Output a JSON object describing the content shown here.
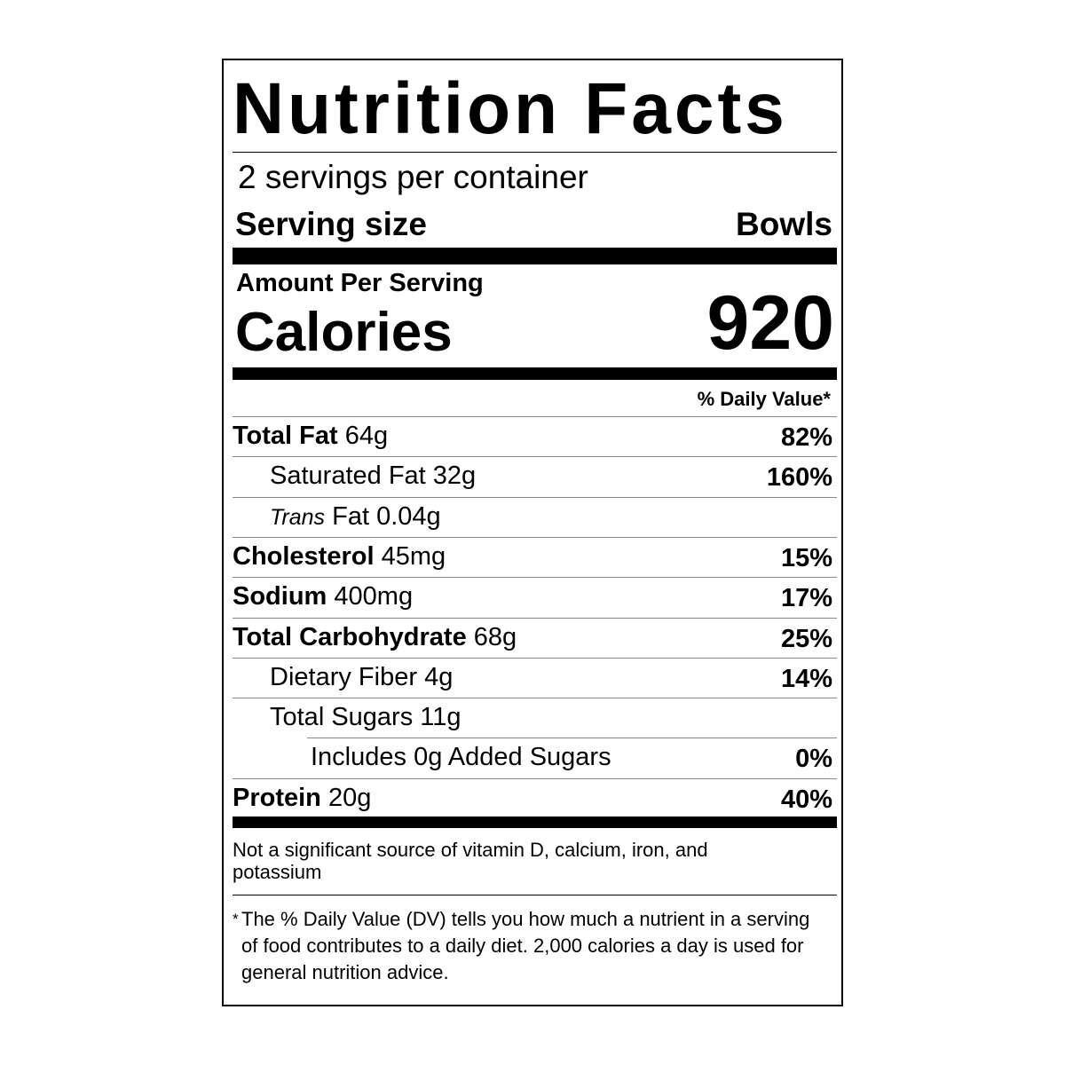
{
  "title": "Nutrition Facts",
  "servings_per_container": "2 servings per container",
  "serving_size": {
    "label": "Serving size",
    "value": "Bowls"
  },
  "amount_per_serving": "Amount Per Serving",
  "calories": {
    "label": "Calories",
    "value": 920
  },
  "daily_value_header": "% Daily Value*",
  "nutrients": [
    {
      "name": "Total Fat",
      "amount": "64g",
      "dv": "82%",
      "sub_items": [
        {
          "name": "Saturated Fat",
          "amount": "32g",
          "dv": "160%"
        },
        {
          "prefix": "Trans",
          "name": "Fat",
          "amount": "0.04g"
        }
      ]
    },
    {
      "name": "Cholesterol",
      "amount": "45mg",
      "dv": "15%"
    },
    {
      "name": "Sodium",
      "amount": "400mg",
      "dv": "17%"
    },
    {
      "name": "Total Carbohydrate",
      "amount": "68g",
      "dv": "25%",
      "sub_items": [
        {
          "name": "Dietary Fiber",
          "amount": "4g",
          "dv": "14%"
        },
        {
          "name": "Total Sugars",
          "amount": "11g",
          "sub_items": [
            {
              "name": "Includes 0g Added Sugars",
              "dv": "0%"
            }
          ]
        }
      ]
    },
    {
      "name": "Protein",
      "amount": "20g",
      "dv": "40%"
    }
  ],
  "footnote_vitamins": "Not a significant source of vitamin D, calcium, iron, and potassium",
  "footnote_dv": {
    "marker": "*",
    "text": "The % Daily Value (DV) tells you how much a nutrient in a serving of food contributes to a daily diet. 2,000 calories a day is used for general nutrition advice."
  }
}
